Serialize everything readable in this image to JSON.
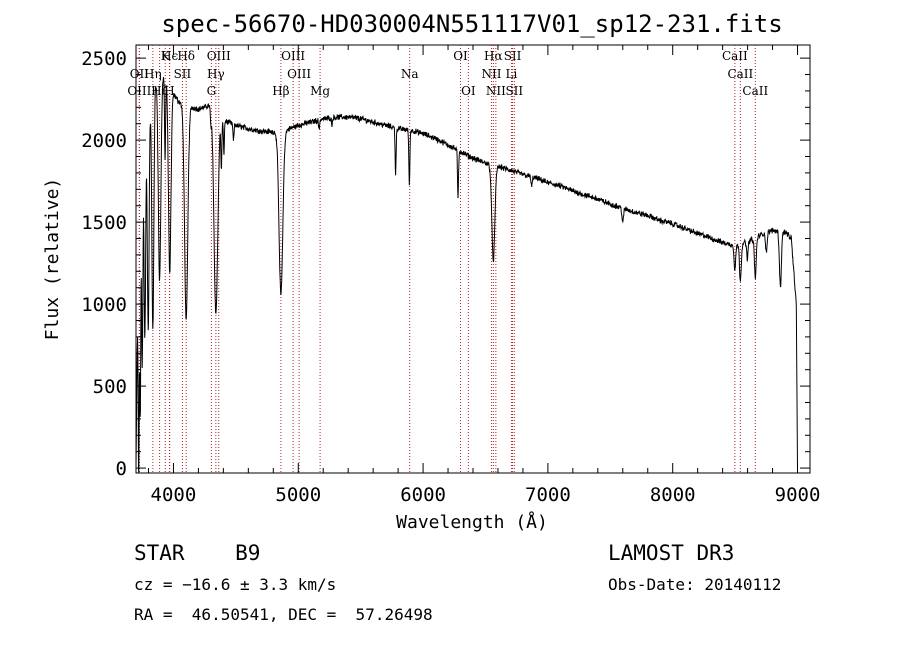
{
  "chart_data": {
    "type": "line",
    "title": "spec-56670-HD030004N551117V01_sp12-231.fits",
    "xlabel": "Wavelength (Å)",
    "ylabel": "Flux (relative)",
    "xlim": [
      3700,
      9100
    ],
    "ylim": [
      -30,
      2580
    ],
    "x_ticks": [
      4000,
      5000,
      6000,
      7000,
      8000,
      9000
    ],
    "y_ticks": [
      0,
      500,
      1000,
      1500,
      2000,
      2500
    ],
    "continuum": [
      [
        3700,
        0
      ],
      [
        3712,
        850
      ],
      [
        3730,
        1500
      ],
      [
        3760,
        1900
      ],
      [
        3800,
        2200
      ],
      [
        3850,
        2350
      ],
      [
        3900,
        2400
      ],
      [
        3950,
        2370
      ],
      [
        4000,
        2280
      ],
      [
        4050,
        2230
      ],
      [
        4100,
        2210
      ],
      [
        4150,
        2200
      ],
      [
        4200,
        2190
      ],
      [
        4250,
        2200
      ],
      [
        4300,
        2220
      ],
      [
        4350,
        2150
      ],
      [
        4400,
        2120
      ],
      [
        4500,
        2090
      ],
      [
        4600,
        2070
      ],
      [
        4700,
        2055
      ],
      [
        4800,
        2050
      ],
      [
        4900,
        2060
      ],
      [
        5000,
        2090
      ],
      [
        5100,
        2110
      ],
      [
        5200,
        2130
      ],
      [
        5300,
        2140
      ],
      [
        5400,
        2140
      ],
      [
        5500,
        2130
      ],
      [
        5600,
        2110
      ],
      [
        5700,
        2090
      ],
      [
        5800,
        2070
      ],
      [
        5900,
        2060
      ],
      [
        6000,
        2040
      ],
      [
        6100,
        2010
      ],
      [
        6200,
        1970
      ],
      [
        6300,
        1930
      ],
      [
        6400,
        1890
      ],
      [
        6500,
        1860
      ],
      [
        6600,
        1840
      ],
      [
        6700,
        1815
      ],
      [
        6800,
        1790
      ],
      [
        6900,
        1770
      ],
      [
        7000,
        1740
      ],
      [
        7100,
        1720
      ],
      [
        7200,
        1690
      ],
      [
        7300,
        1665
      ],
      [
        7400,
        1640
      ],
      [
        7500,
        1610
      ],
      [
        7600,
        1585
      ],
      [
        7700,
        1560
      ],
      [
        7800,
        1540
      ],
      [
        7900,
        1510
      ],
      [
        8000,
        1490
      ],
      [
        8100,
        1460
      ],
      [
        8200,
        1430
      ],
      [
        8300,
        1405
      ],
      [
        8400,
        1375
      ],
      [
        8500,
        1355
      ],
      [
        8600,
        1380
      ],
      [
        8700,
        1420
      ],
      [
        8800,
        1450
      ],
      [
        8900,
        1440
      ],
      [
        8950,
        1400
      ],
      [
        8990,
        1000
      ],
      [
        9000,
        0
      ]
    ],
    "absorption": [
      {
        "x": 3722,
        "depth": 1300,
        "width": 4
      },
      {
        "x": 3734,
        "depth": 1250,
        "width": 4
      },
      {
        "x": 3750,
        "depth": 1150,
        "width": 5
      },
      {
        "x": 3771,
        "depth": 1200,
        "width": 6
      },
      {
        "x": 3798,
        "depth": 1350,
        "width": 7
      },
      {
        "x": 3835,
        "depth": 1450,
        "width": 8
      },
      {
        "x": 3889,
        "depth": 1250,
        "width": 10
      },
      {
        "x": 3933,
        "depth": 500,
        "width": 4
      },
      {
        "x": 3970,
        "depth": 1150,
        "width": 10
      },
      {
        "x": 4102,
        "depth": 1300,
        "width": 13
      },
      {
        "x": 4300,
        "depth": 100,
        "width": 5
      },
      {
        "x": 4340,
        "depth": 1220,
        "width": 15
      },
      {
        "x": 4384,
        "depth": 300,
        "width": 4
      },
      {
        "x": 4404,
        "depth": 200,
        "width": 4
      },
      {
        "x": 4481,
        "depth": 100,
        "width": 4
      },
      {
        "x": 4861,
        "depth": 1000,
        "width": 15
      },
      {
        "x": 5167,
        "depth": 60,
        "width": 4
      },
      {
        "x": 5270,
        "depth": 40,
        "width": 4
      },
      {
        "x": 5780,
        "depth": 280,
        "width": 4
      },
      {
        "x": 5890,
        "depth": 330,
        "width": 4
      },
      {
        "x": 6280,
        "depth": 300,
        "width": 4
      },
      {
        "x": 6563,
        "depth": 580,
        "width": 12
      },
      {
        "x": 6870,
        "depth": 60,
        "width": 5
      },
      {
        "x": 7600,
        "depth": 90,
        "width": 6
      },
      {
        "x": 8498,
        "depth": 150,
        "width": 6
      },
      {
        "x": 8542,
        "depth": 220,
        "width": 7
      },
      {
        "x": 8598,
        "depth": 100,
        "width": 6
      },
      {
        "x": 8662,
        "depth": 250,
        "width": 7
      },
      {
        "x": 8750,
        "depth": 120,
        "width": 6
      },
      {
        "x": 8863,
        "depth": 330,
        "width": 8
      }
    ],
    "reference_lines": [
      {
        "label": "Hϵ",
        "x": 3970,
        "row": 1
      },
      {
        "label": "K",
        "x": 3934,
        "row": 1
      },
      {
        "label": "Hδ",
        "x": 4102,
        "row": 1
      },
      {
        "label": "OIII",
        "x": 4363,
        "row": 1
      },
      {
        "label": "OIII",
        "x": 4959,
        "row": 1
      },
      {
        "label": "OI",
        "x": 6300,
        "row": 1
      },
      {
        "label": "Hα",
        "x": 6563,
        "row": 1
      },
      {
        "label": "SII",
        "x": 6717,
        "row": 1
      },
      {
        "label": "CaII",
        "x": 8498,
        "row": 1
      },
      {
        "label": "OII",
        "x": 3727,
        "row": 2
      },
      {
        "label": "Hη",
        "x": 3835,
        "row": 2
      },
      {
        "label": "SII",
        "x": 4072,
        "row": 2
      },
      {
        "label": "Hγ",
        "x": 4340,
        "row": 2
      },
      {
        "label": "OIII",
        "x": 5007,
        "row": 2
      },
      {
        "label": "Na",
        "x": 5893,
        "row": 2
      },
      {
        "label": "NII",
        "x": 6548,
        "row": 2
      },
      {
        "label": "Li",
        "x": 6708,
        "row": 2
      },
      {
        "label": "CaII",
        "x": 8542,
        "row": 2
      },
      {
        "label": "OIII",
        "x": 3727,
        "row": 3
      },
      {
        "label": "Hζ",
        "x": 3889,
        "row": 3
      },
      {
        "label": "H",
        "x": 3968,
        "row": 3
      },
      {
        "label": "G",
        "x": 4304,
        "row": 3
      },
      {
        "label": "Hβ",
        "x": 4861,
        "row": 3
      },
      {
        "label": "Mg",
        "x": 5175,
        "row": 3
      },
      {
        "label": "OI",
        "x": 6363,
        "row": 3
      },
      {
        "label": "NII",
        "x": 6583,
        "row": 3
      },
      {
        "label": "SII",
        "x": 6731,
        "row": 3
      },
      {
        "label": "CaII",
        "x": 8662,
        "row": 3
      }
    ]
  },
  "info": {
    "class": "STAR    B9",
    "survey": "LAMOST DR3",
    "cz": "cz = −16.6 ± 3.3 km/s",
    "obs_date": "Obs-Date: 20140112",
    "radec": "RA =  46.50541, DEC =  57.26498"
  }
}
